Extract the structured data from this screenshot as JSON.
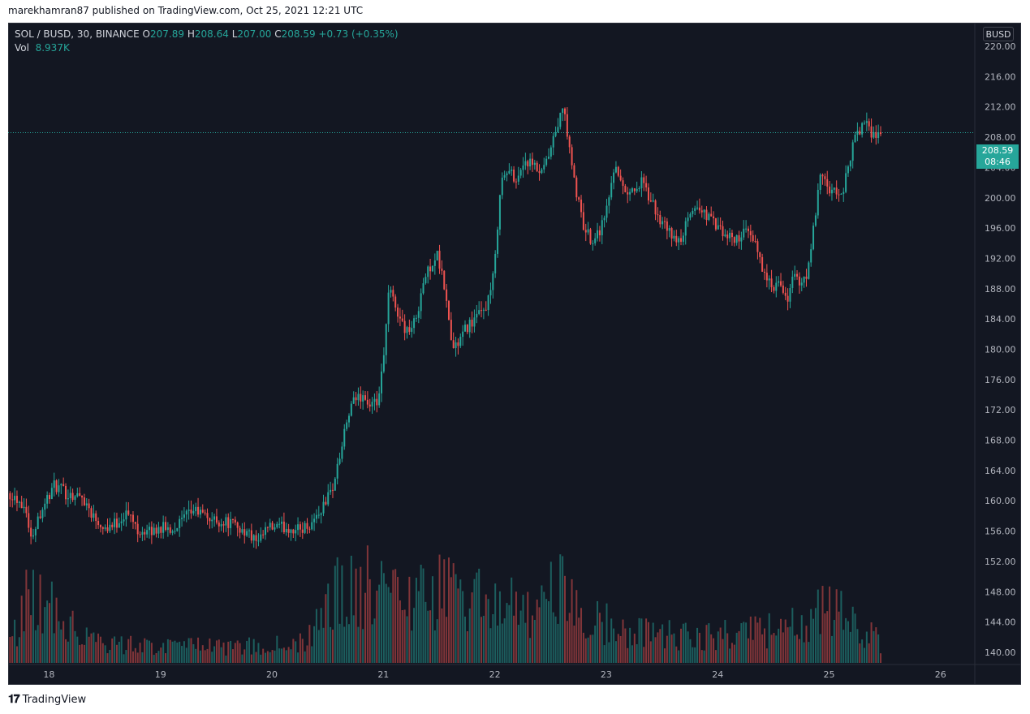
{
  "attribution": "marekhamran87 published on TradingView.com, Oct 25, 2021 12:21 UTC",
  "legend": {
    "symbol": "SOL / BUSD, 30, BINANCE",
    "o_label": "O",
    "o": "207.89",
    "h_label": "H",
    "h": "208.64",
    "l_label": "L",
    "l": "207.00",
    "c_label": "C",
    "c": "208.59",
    "change": "+0.73 (+0.35%)",
    "vol_label": "Vol",
    "vol": "8.937K"
  },
  "currency": "BUSD",
  "last_price": {
    "price": "208.59",
    "countdown": "08:46"
  },
  "brand": "TradingView",
  "colors": {
    "up": "#26a69a",
    "down": "#ef5350",
    "background": "#131722",
    "text": "#b2b5be"
  },
  "chart_data": {
    "type": "candlestick",
    "x_ticks": [
      "18",
      "19",
      "20",
      "21",
      "22",
      "23",
      "24",
      "25",
      "26"
    ],
    "y_ticks": [
      "140.00",
      "144.00",
      "148.00",
      "152.00",
      "156.00",
      "160.00",
      "164.00",
      "168.00",
      "172.00",
      "176.00",
      "180.00",
      "184.00",
      "188.00",
      "192.00",
      "196.00",
      "200.00",
      "204.00",
      "208.00",
      "212.00",
      "216.00",
      "220.00"
    ],
    "ylim": [
      138.5,
      223
    ],
    "xlim_days": [
      17.64,
      26.3
    ],
    "interval_minutes": 30,
    "grid": false,
    "current_price": 208.59,
    "close_path": [
      [
        17.65,
        161
      ],
      [
        17.7,
        160.5
      ],
      [
        17.8,
        159
      ],
      [
        17.83,
        154.5
      ],
      [
        17.88,
        157
      ],
      [
        17.95,
        159.5
      ],
      [
        18.05,
        162
      ],
      [
        18.15,
        161
      ],
      [
        18.3,
        160.5
      ],
      [
        18.4,
        158
      ],
      [
        18.5,
        156.5
      ],
      [
        18.6,
        157
      ],
      [
        18.7,
        158.5
      ],
      [
        18.8,
        156.2
      ],
      [
        18.9,
        155.8
      ],
      [
        19.0,
        156.5
      ],
      [
        19.1,
        156.2
      ],
      [
        19.2,
        157.5
      ],
      [
        19.3,
        158.8
      ],
      [
        19.4,
        158
      ],
      [
        19.5,
        157.3
      ],
      [
        19.6,
        157.2
      ],
      [
        19.7,
        156.5
      ],
      [
        19.8,
        155.5
      ],
      [
        19.88,
        154.2
      ],
      [
        19.95,
        156.3
      ],
      [
        20.1,
        156.5
      ],
      [
        20.25,
        156.2
      ],
      [
        20.35,
        157
      ],
      [
        20.45,
        159
      ],
      [
        20.55,
        162
      ],
      [
        20.62,
        166.5
      ],
      [
        20.68,
        171
      ],
      [
        20.75,
        173.5
      ],
      [
        20.82,
        174
      ],
      [
        20.88,
        172.2
      ],
      [
        20.95,
        173
      ],
      [
        21.0,
        178
      ],
      [
        21.05,
        188
      ],
      [
        21.1,
        186
      ],
      [
        21.18,
        183
      ],
      [
        21.25,
        182.5
      ],
      [
        21.3,
        184.5
      ],
      [
        21.35,
        188.5
      ],
      [
        21.42,
        191
      ],
      [
        21.48,
        192.5
      ],
      [
        21.55,
        188
      ],
      [
        21.62,
        180
      ],
      [
        21.68,
        181
      ],
      [
        21.75,
        183
      ],
      [
        21.82,
        184
      ],
      [
        21.9,
        185
      ],
      [
        21.96,
        187.5
      ],
      [
        22.0,
        191
      ],
      [
        22.05,
        202
      ],
      [
        22.12,
        203.5
      ],
      [
        22.2,
        202.5
      ],
      [
        22.27,
        205
      ],
      [
        22.35,
        204
      ],
      [
        22.42,
        203
      ],
      [
        22.5,
        206
      ],
      [
        22.55,
        209
      ],
      [
        22.62,
        212
      ],
      [
        22.68,
        205
      ],
      [
        22.74,
        200
      ],
      [
        22.8,
        196
      ],
      [
        22.87,
        194.5
      ],
      [
        22.95,
        196
      ],
      [
        23.02,
        199.5
      ],
      [
        23.08,
        205
      ],
      [
        23.15,
        201
      ],
      [
        23.25,
        201
      ],
      [
        23.32,
        202
      ],
      [
        23.4,
        199.5
      ],
      [
        23.5,
        196.5
      ],
      [
        23.58,
        195.2
      ],
      [
        23.65,
        194
      ],
      [
        23.72,
        196.5
      ],
      [
        23.8,
        199
      ],
      [
        23.88,
        198
      ],
      [
        23.95,
        197
      ],
      [
        24.05,
        195
      ],
      [
        24.15,
        194.5
      ],
      [
        24.25,
        195.5
      ],
      [
        24.35,
        193.5
      ],
      [
        24.42,
        190
      ],
      [
        24.48,
        188
      ],
      [
        24.55,
        188.5
      ],
      [
        24.62,
        186
      ],
      [
        24.68,
        190.5
      ],
      [
        24.75,
        188
      ],
      [
        24.82,
        191
      ],
      [
        24.87,
        197
      ],
      [
        24.92,
        203
      ],
      [
        25.0,
        201
      ],
      [
        25.05,
        200.5
      ],
      [
        25.12,
        200.5
      ],
      [
        25.18,
        205
      ],
      [
        25.25,
        208.5
      ],
      [
        25.32,
        210
      ],
      [
        25.37,
        208.5
      ],
      [
        25.42,
        208.6
      ],
      [
        25.48,
        208.6
      ]
    ],
    "volume_relative_path": [
      [
        17.65,
        0.15
      ],
      [
        17.83,
        0.55
      ],
      [
        18.5,
        0.15
      ],
      [
        19.5,
        0.12
      ],
      [
        20.3,
        0.15
      ],
      [
        20.6,
        0.55
      ],
      [
        20.95,
        0.6
      ],
      [
        21.05,
        0.5
      ],
      [
        21.5,
        0.55
      ],
      [
        22.05,
        0.5
      ],
      [
        22.3,
        0.35
      ],
      [
        22.6,
        0.6
      ],
      [
        22.75,
        0.35
      ],
      [
        23.2,
        0.25
      ],
      [
        23.8,
        0.2
      ],
      [
        24.5,
        0.25
      ],
      [
        24.8,
        0.35
      ],
      [
        24.95,
        0.45
      ],
      [
        25.2,
        0.3
      ],
      [
        25.48,
        0.15
      ]
    ]
  }
}
